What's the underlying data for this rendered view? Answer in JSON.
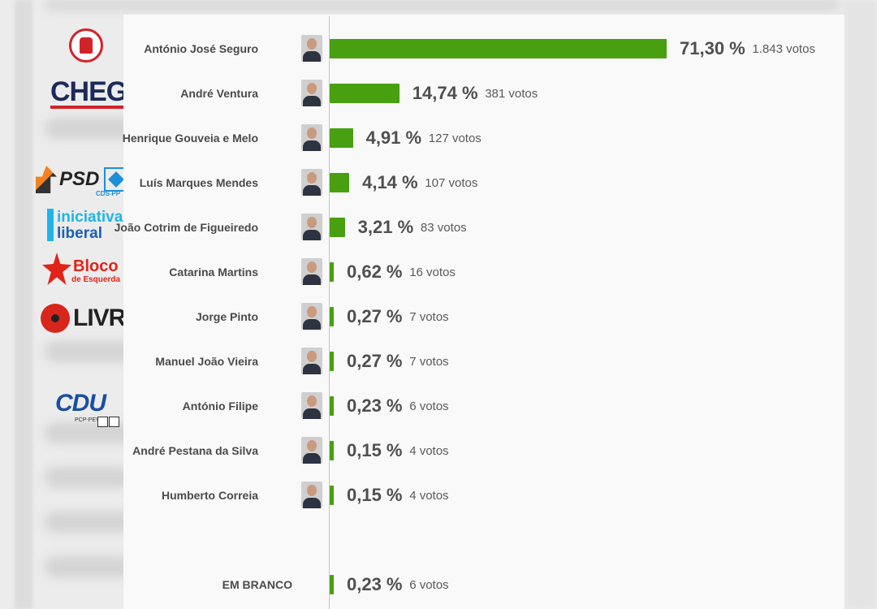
{
  "colors": {
    "bar": "#48a011",
    "panel": "#f9f9f9",
    "text": "#4a4a4a"
  },
  "parties": [
    {
      "name": "ps-logo",
      "icon": "ps-fist-logo"
    },
    {
      "name": "chega-logo",
      "label": "CHEGA"
    },
    {
      "name": "psd-logo",
      "label": "PSD",
      "label2": "CDS-PP"
    },
    {
      "name": "il-logo",
      "label": "iniciativa",
      "label2": "liberal"
    },
    {
      "name": "be-logo",
      "label": "Bloco",
      "label2": "de Esquerda"
    },
    {
      "name": "livre-logo",
      "label": "LIVRE"
    },
    {
      "name": "cdu-logo",
      "label": "CDU",
      "label2": "PCP-PEV"
    }
  ],
  "chart_data": {
    "type": "bar",
    "orientation": "horizontal",
    "categories": [
      "António José Seguro",
      "André Ventura",
      "Henrique Gouveia e Melo",
      "Luís Marques Mendes",
      "João Cotrim de Figueiredo",
      "Catarina Martins",
      "Jorge Pinto",
      "Manuel João Vieira",
      "António Filipe",
      "André Pestana da Silva",
      "Humberto Correia",
      "EM BRANCO"
    ],
    "values": [
      71.3,
      14.74,
      4.91,
      4.14,
      3.21,
      0.62,
      0.27,
      0.27,
      0.23,
      0.15,
      0.15,
      0.23
    ],
    "pct_labels": [
      "71,30 %",
      "14,74 %",
      "4,91 %",
      "4,14 %",
      "3,21 %",
      "0,62 %",
      "0,27 %",
      "0,27 %",
      "0,23 %",
      "0,15 %",
      "0,15 %",
      "0,23 %"
    ],
    "vote_labels": [
      "1.843 votos",
      "381 votos",
      "127 votos",
      "107 votos",
      "83 votos",
      "16 votos",
      "7 votos",
      "7 votos",
      "6 votos",
      "4 votos",
      "4 votos",
      "6 votos"
    ],
    "votes": [
      1843,
      381,
      127,
      107,
      83,
      16,
      7,
      7,
      6,
      4,
      4,
      6
    ],
    "has_photo": [
      true,
      true,
      true,
      true,
      true,
      true,
      true,
      true,
      true,
      true,
      true,
      false
    ],
    "xlim": [
      0,
      71.3
    ],
    "grid": false,
    "legend": "none"
  }
}
